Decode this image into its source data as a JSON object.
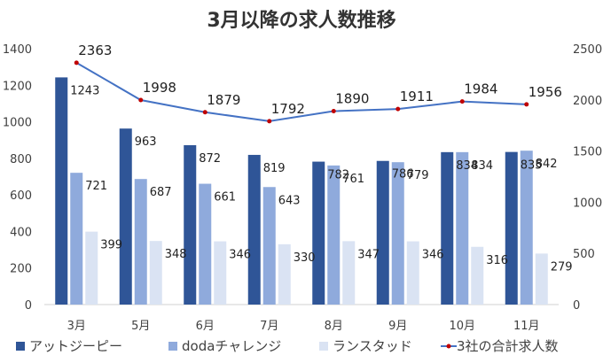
{
  "chart_data": {
    "type": "bar",
    "title": "3月以降の求人数推移",
    "categories": [
      "3月",
      "5月",
      "6月",
      "7月",
      "8月",
      "9月",
      "10月",
      "11月"
    ],
    "series": [
      {
        "name": "アットジーピー",
        "type": "bar",
        "axis": "left",
        "color": "#2F5597",
        "values": [
          1243,
          963,
          872,
          819,
          782,
          786,
          834,
          835
        ]
      },
      {
        "name": "dodaチャレンジ",
        "type": "bar",
        "axis": "left",
        "color": "#8FAADC",
        "values": [
          721,
          687,
          661,
          643,
          761,
          779,
          834,
          842
        ]
      },
      {
        "name": "ランスタッド",
        "type": "bar",
        "axis": "left",
        "color": "#DAE3F3",
        "values": [
          399,
          348,
          346,
          330,
          347,
          346,
          316,
          279
        ]
      },
      {
        "name": "3社の合計求人数",
        "type": "line",
        "axis": "right",
        "color": "#4472C4",
        "marker_color": "#C00000",
        "values": [
          2363,
          1998,
          1879,
          1792,
          1890,
          1911,
          1984,
          1956
        ]
      }
    ],
    "y_left": {
      "min": 0,
      "max": 1400,
      "ticks": [
        "0",
        "200",
        "400",
        "600",
        "800",
        "1000",
        "1200",
        "1400"
      ]
    },
    "y_right": {
      "min": 0,
      "max": 2500,
      "ticks": [
        "0",
        "500",
        "1000",
        "1500",
        "2000",
        "2500"
      ]
    },
    "legend": "bottom",
    "grid": false
  }
}
